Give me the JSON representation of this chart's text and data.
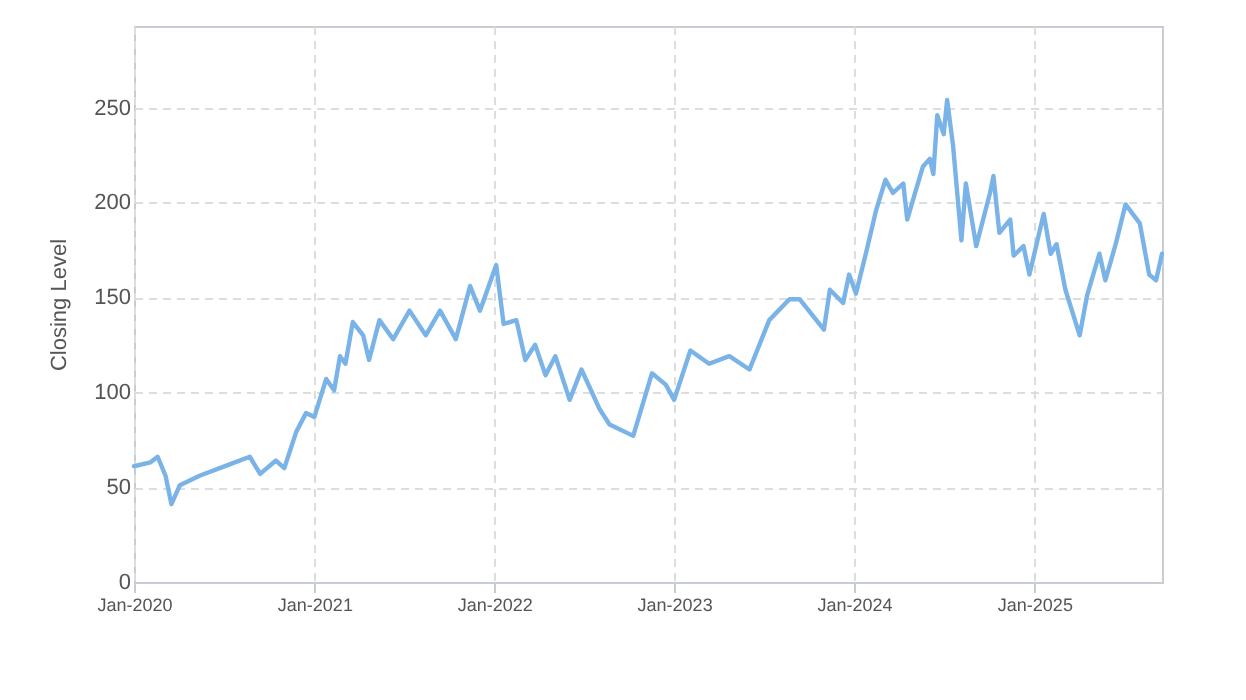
{
  "chart_data": {
    "type": "line",
    "ylabel": "Closing Level",
    "x": [
      "2020-01-01",
      "2020-02-03",
      "2020-02-18",
      "2020-03-05",
      "2020-03-17",
      "2020-04-03",
      "2020-05-13",
      "2020-07-13",
      "2020-08-23",
      "2020-09-13",
      "2020-10-15",
      "2020-11-01",
      "2020-11-25",
      "2020-12-15",
      "2021-01-01",
      "2021-01-25",
      "2021-02-10",
      "2021-02-22",
      "2021-03-05",
      "2021-03-20",
      "2021-04-10",
      "2021-04-22",
      "2021-05-13",
      "2021-06-10",
      "2021-07-13",
      "2021-08-15",
      "2021-09-13",
      "2021-10-15",
      "2021-11-13",
      "2021-12-03",
      "2022-01-05",
      "2022-01-20",
      "2022-02-15",
      "2022-03-05",
      "2022-03-25",
      "2022-04-15",
      "2022-05-05",
      "2022-06-03",
      "2022-06-27",
      "2022-08-03",
      "2022-08-23",
      "2022-10-10",
      "2022-11-17",
      "2022-12-15",
      "2023-01-01",
      "2023-02-03",
      "2023-03-13",
      "2023-04-23",
      "2023-06-03",
      "2023-07-13",
      "2023-08-23",
      "2023-09-13",
      "2023-11-01",
      "2023-11-13",
      "2023-12-10",
      "2023-12-22",
      "2024-01-05",
      "2024-01-25",
      "2024-02-15",
      "2024-03-05",
      "2024-03-20",
      "2024-04-10",
      "2024-04-18",
      "2024-05-05",
      "2024-05-20",
      "2024-06-03",
      "2024-06-10",
      "2024-06-18",
      "2024-07-01",
      "2024-07-08",
      "2024-07-20",
      "2024-08-06",
      "2024-08-15",
      "2024-09-05",
      "2024-10-03",
      "2024-10-10",
      "2024-10-22",
      "2024-11-13",
      "2024-11-20",
      "2024-12-10",
      "2024-12-22",
      "2025-01-20",
      "2025-02-03",
      "2025-02-15",
      "2025-03-05",
      "2025-04-03",
      "2025-04-18",
      "2025-05-13",
      "2025-05-25",
      "2025-06-15",
      "2025-07-05",
      "2025-08-03",
      "2025-08-22",
      "2025-09-05",
      "2025-09-17"
    ],
    "series": [
      {
        "color": "#7ab3e8",
        "values": [
          61,
          63,
          66,
          56,
          41,
          51,
          56,
          62,
          66,
          57,
          64,
          60,
          79,
          89,
          87,
          107,
          101,
          119,
          115,
          137,
          130,
          117,
          138,
          128,
          143,
          130,
          143,
          128,
          156,
          143,
          167,
          136,
          138,
          117,
          125,
          109,
          119,
          96,
          112,
          91,
          83,
          77,
          110,
          104,
          96,
          122,
          115,
          119,
          112,
          138,
          149,
          149,
          133,
          154,
          147,
          162,
          152,
          173,
          196,
          212,
          205,
          210,
          191,
          206,
          219,
          223,
          215,
          246,
          236,
          254,
          230,
          180,
          210,
          177,
          205,
          214,
          184,
          191,
          172,
          177,
          162,
          194,
          173,
          178,
          154,
          130,
          151,
          173,
          159,
          178,
          199,
          189,
          162,
          159,
          173
        ]
      }
    ],
    "xlim": [
      "2020-01-01",
      "2025-09-17"
    ],
    "xticks": [
      {
        "value": "2020-01-01",
        "label": "Jan-2020"
      },
      {
        "value": "2021-01-01",
        "label": "Jan-2021"
      },
      {
        "value": "2022-01-01",
        "label": "Jan-2022"
      },
      {
        "value": "2023-01-01",
        "label": "Jan-2023"
      },
      {
        "value": "2024-01-01",
        "label": "Jan-2024"
      },
      {
        "value": "2025-01-01",
        "label": "Jan-2025"
      }
    ],
    "ylim": [
      0,
      293
    ],
    "yticks": [
      0,
      50,
      100,
      150,
      200,
      250
    ],
    "grid": true,
    "line_style": "solid"
  }
}
